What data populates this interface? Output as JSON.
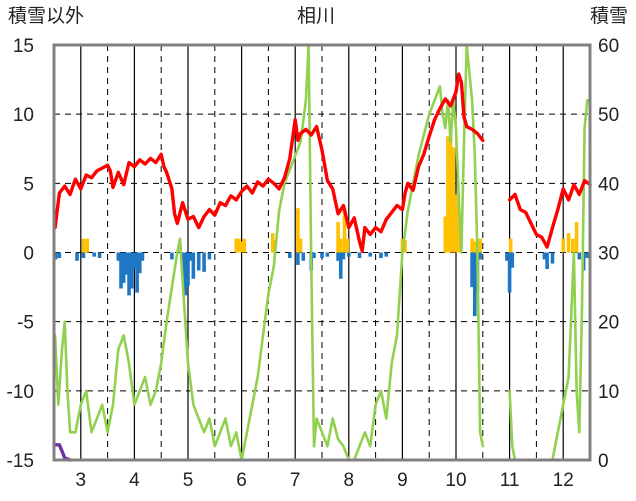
{
  "chart_data": {
    "type": "line",
    "title": "相川",
    "left_axis_label": "積雪以外",
    "right_axis_label": "積雪",
    "left_ylim": [
      -15,
      15
    ],
    "left_ticks": [
      "15",
      "10",
      "5",
      "0",
      "-5",
      "-10",
      "-15"
    ],
    "right_ylim": [
      0,
      60
    ],
    "right_ticks": [
      "60",
      "50",
      "40",
      "30",
      "20",
      "10",
      "0"
    ],
    "x_ticks": [
      "3",
      "4",
      "5",
      "6",
      "7",
      "8",
      "9",
      "10",
      "11",
      "12"
    ],
    "x_range": [
      2.5,
      12.5
    ],
    "grid": "dashed",
    "colors": {
      "temperature": "#ff0000",
      "positive_bars": "#ffc000",
      "negative_bars": "#1f77c4",
      "snow_series": "#92d050",
      "snow_depth": "#7030a0",
      "grid": "#000000",
      "frame": "#808080"
    },
    "series": [
      {
        "role": "red_line_left_axis",
        "points": [
          [
            2.52,
            1.8
          ],
          [
            2.6,
            4.3
          ],
          [
            2.7,
            4.8
          ],
          [
            2.8,
            4.2
          ],
          [
            2.9,
            5.3
          ],
          [
            3.0,
            4.6
          ],
          [
            3.1,
            5.6
          ],
          [
            3.2,
            5.4
          ],
          [
            3.3,
            5.9
          ],
          [
            3.4,
            6.1
          ],
          [
            3.5,
            6.3
          ],
          [
            3.55,
            5.9
          ],
          [
            3.6,
            4.7
          ],
          [
            3.7,
            5.8
          ],
          [
            3.8,
            4.9
          ],
          [
            3.9,
            6.5
          ],
          [
            4.0,
            6.2
          ],
          [
            4.1,
            6.7
          ],
          [
            4.2,
            6.4
          ],
          [
            4.3,
            6.8
          ],
          [
            4.4,
            6.5
          ],
          [
            4.5,
            7.1
          ],
          [
            4.55,
            6.2
          ],
          [
            4.6,
            5.8
          ],
          [
            4.7,
            4.6
          ],
          [
            4.75,
            2.8
          ],
          [
            4.8,
            2.1
          ],
          [
            4.9,
            3.6
          ],
          [
            5.0,
            2.4
          ],
          [
            5.1,
            2.6
          ],
          [
            5.2,
            1.8
          ],
          [
            5.3,
            2.6
          ],
          [
            5.4,
            3.1
          ],
          [
            5.5,
            2.7
          ],
          [
            5.6,
            3.6
          ],
          [
            5.7,
            3.4
          ],
          [
            5.8,
            4.1
          ],
          [
            5.9,
            3.8
          ],
          [
            6.0,
            4.4
          ],
          [
            6.1,
            4.8
          ],
          [
            6.2,
            4.3
          ],
          [
            6.3,
            5.1
          ],
          [
            6.4,
            4.8
          ],
          [
            6.5,
            5.3
          ],
          [
            6.6,
            5.0
          ],
          [
            6.7,
            4.6
          ],
          [
            6.8,
            5.4
          ],
          [
            6.9,
            6.8
          ],
          [
            7.0,
            9.6
          ],
          [
            7.05,
            8.1
          ],
          [
            7.1,
            8.6
          ],
          [
            7.2,
            8.9
          ],
          [
            7.3,
            8.5
          ],
          [
            7.4,
            9.1
          ],
          [
            7.5,
            7.4
          ],
          [
            7.6,
            5.2
          ],
          [
            7.7,
            4.6
          ],
          [
            7.8,
            2.8
          ],
          [
            7.9,
            3.4
          ],
          [
            8.0,
            1.8
          ],
          [
            8.1,
            2.5
          ],
          [
            8.2,
            0.8
          ],
          [
            8.25,
            0.1
          ],
          [
            8.3,
            1.8
          ],
          [
            8.4,
            1.3
          ],
          [
            8.5,
            1.8
          ],
          [
            8.6,
            1.5
          ],
          [
            8.7,
            2.4
          ],
          [
            8.8,
            2.9
          ],
          [
            8.9,
            3.4
          ],
          [
            9.0,
            3.1
          ],
          [
            9.05,
            4.3
          ],
          [
            9.1,
            5.0
          ],
          [
            9.2,
            4.5
          ],
          [
            9.3,
            6.2
          ],
          [
            9.4,
            7.1
          ],
          [
            9.5,
            8.4
          ],
          [
            9.6,
            9.6
          ],
          [
            9.7,
            10.4
          ],
          [
            9.8,
            11.1
          ],
          [
            9.9,
            10.6
          ],
          [
            10.0,
            11.6
          ],
          [
            10.05,
            12.9
          ],
          [
            10.1,
            12.3
          ],
          [
            10.15,
            9.8
          ],
          [
            10.2,
            9.1
          ],
          [
            10.3,
            8.9
          ],
          [
            10.4,
            8.6
          ],
          [
            10.5,
            8.1
          ],
          [
            11.0,
            3.8
          ],
          [
            11.1,
            4.2
          ],
          [
            11.2,
            3.1
          ],
          [
            11.3,
            2.9
          ],
          [
            11.4,
            2.1
          ],
          [
            11.5,
            1.3
          ],
          [
            11.6,
            1.1
          ],
          [
            11.7,
            0.4
          ],
          [
            11.8,
            1.8
          ],
          [
            11.9,
            3.1
          ],
          [
            12.0,
            4.6
          ],
          [
            12.1,
            3.8
          ],
          [
            12.2,
            4.9
          ],
          [
            12.3,
            4.2
          ],
          [
            12.4,
            5.2
          ],
          [
            12.5,
            4.9
          ]
        ]
      },
      {
        "role": "green_line_right_axis",
        "points": [
          [
            2.52,
            18
          ],
          [
            2.58,
            8
          ],
          [
            2.65,
            16
          ],
          [
            2.7,
            20
          ],
          [
            2.75,
            10
          ],
          [
            2.8,
            4
          ],
          [
            2.9,
            4
          ],
          [
            3.0,
            8
          ],
          [
            3.1,
            10
          ],
          [
            3.2,
            4
          ],
          [
            3.3,
            6
          ],
          [
            3.4,
            8
          ],
          [
            3.5,
            4
          ],
          [
            3.6,
            8
          ],
          [
            3.7,
            16
          ],
          [
            3.8,
            18
          ],
          [
            3.9,
            14
          ],
          [
            4.0,
            8
          ],
          [
            4.1,
            10
          ],
          [
            4.2,
            12
          ],
          [
            4.3,
            8
          ],
          [
            4.4,
            10
          ],
          [
            4.5,
            14
          ],
          [
            4.6,
            20
          ],
          [
            4.7,
            25
          ],
          [
            4.8,
            30
          ],
          [
            4.85,
            32
          ],
          [
            4.9,
            26
          ],
          [
            5.0,
            14
          ],
          [
            5.1,
            8
          ],
          [
            5.2,
            6
          ],
          [
            5.3,
            4
          ],
          [
            5.4,
            6
          ],
          [
            5.5,
            2
          ],
          [
            5.6,
            4
          ],
          [
            5.7,
            6
          ],
          [
            5.8,
            2
          ],
          [
            5.9,
            4
          ],
          [
            6.0,
            0
          ],
          [
            6.1,
            4
          ],
          [
            6.2,
            8
          ],
          [
            6.3,
            12
          ],
          [
            6.4,
            18
          ],
          [
            6.5,
            24
          ],
          [
            6.6,
            28
          ],
          [
            6.7,
            36
          ],
          [
            6.8,
            40
          ],
          [
            6.9,
            42
          ],
          [
            7.0,
            44
          ],
          [
            7.1,
            46
          ],
          [
            7.2,
            52
          ],
          [
            7.25,
            60
          ],
          [
            7.3,
            28
          ],
          [
            7.35,
            2
          ],
          [
            7.4,
            6
          ],
          [
            7.5,
            4
          ],
          [
            7.6,
            2
          ],
          [
            7.7,
            6
          ],
          [
            7.8,
            3
          ],
          [
            7.9,
            2
          ],
          [
            8.0,
            0
          ],
          [
            8.1,
            0
          ],
          [
            8.2,
            2
          ],
          [
            8.3,
            4
          ],
          [
            8.4,
            2
          ],
          [
            8.5,
            8
          ],
          [
            8.6,
            10
          ],
          [
            8.7,
            6
          ],
          [
            8.8,
            14
          ],
          [
            8.9,
            18
          ],
          [
            9.0,
            30
          ],
          [
            9.1,
            36
          ],
          [
            9.2,
            40
          ],
          [
            9.3,
            44
          ],
          [
            9.4,
            47
          ],
          [
            9.5,
            50
          ],
          [
            9.6,
            52
          ],
          [
            9.7,
            54
          ],
          [
            9.75,
            50
          ],
          [
            9.8,
            48
          ],
          [
            9.85,
            52
          ],
          [
            9.9,
            46
          ],
          [
            9.95,
            52
          ],
          [
            10.0,
            48
          ],
          [
            10.05,
            38
          ],
          [
            10.1,
            30
          ],
          [
            10.15,
            46
          ],
          [
            10.2,
            60
          ],
          [
            10.25,
            56
          ],
          [
            10.3,
            52
          ],
          [
            10.35,
            44
          ],
          [
            10.4,
            30
          ],
          [
            10.45,
            4
          ],
          [
            10.5,
            2
          ],
          [
            11.0,
            10
          ],
          [
            11.05,
            2
          ],
          [
            11.1,
            0
          ],
          [
            11.8,
            0
          ],
          [
            11.9,
            4
          ],
          [
            12.0,
            8
          ],
          [
            12.1,
            12
          ],
          [
            12.2,
            30
          ],
          [
            12.25,
            10
          ],
          [
            12.3,
            4
          ],
          [
            12.35,
            22
          ],
          [
            12.4,
            48
          ],
          [
            12.45,
            52
          ],
          [
            12.5,
            52
          ]
        ]
      },
      {
        "role": "purple_line_right_axis",
        "points": [
          [
            2.5,
            2.2
          ],
          [
            2.6,
            2.2
          ],
          [
            2.7,
            0.3
          ],
          [
            2.8,
            0
          ],
          [
            12.5,
            0
          ]
        ]
      },
      {
        "role": "positive_bars_left_axis",
        "bars": [
          [
            3.05,
            1.0
          ],
          [
            3.12,
            1.0
          ],
          [
            5.9,
            1.0
          ],
          [
            5.95,
            1.0
          ],
          [
            6.0,
            0.8
          ],
          [
            6.05,
            1.0
          ],
          [
            6.58,
            1.4
          ],
          [
            6.62,
            0.9
          ],
          [
            7.05,
            3.2
          ],
          [
            7.1,
            1.0
          ],
          [
            7.8,
            2.2
          ],
          [
            7.85,
            1.0
          ],
          [
            7.92,
            3.2
          ],
          [
            7.97,
            1.0
          ],
          [
            9.0,
            1.0
          ],
          [
            9.05,
            0.9
          ],
          [
            9.8,
            2.6
          ],
          [
            9.85,
            8.4
          ],
          [
            9.9,
            9.2
          ],
          [
            9.95,
            7.6
          ],
          [
            10.02,
            4.2
          ],
          [
            10.08,
            2.8
          ],
          [
            10.3,
            1.0
          ],
          [
            10.35,
            0.8
          ],
          [
            10.45,
            1.0
          ],
          [
            11.02,
            1.0
          ],
          [
            12.0,
            1.0
          ],
          [
            12.1,
            1.4
          ],
          [
            12.18,
            1.0
          ],
          [
            12.25,
            2.2
          ]
        ]
      },
      {
        "role": "negative_bars_left_axis",
        "bars": [
          [
            2.53,
            -0.5
          ],
          [
            2.6,
            -0.4
          ],
          [
            2.93,
            -0.6
          ],
          [
            3.05,
            -0.4
          ],
          [
            3.25,
            -0.3
          ],
          [
            3.35,
            -0.4
          ],
          [
            3.7,
            -0.6
          ],
          [
            3.75,
            -2.6
          ],
          [
            3.8,
            -2.2
          ],
          [
            3.85,
            -1.6
          ],
          [
            3.9,
            -3.1
          ],
          [
            3.95,
            -2.6
          ],
          [
            4.0,
            -1.2
          ],
          [
            4.05,
            -2.9
          ],
          [
            4.1,
            -1.5
          ],
          [
            4.15,
            -0.6
          ],
          [
            4.7,
            -0.5
          ],
          [
            4.9,
            -1.5
          ],
          [
            4.95,
            -3.1
          ],
          [
            5.0,
            -2.4
          ],
          [
            5.05,
            -0.6
          ],
          [
            5.1,
            -1.9
          ],
          [
            5.2,
            -1.3
          ],
          [
            5.3,
            -1.4
          ],
          [
            5.4,
            -0.5
          ],
          [
            6.9,
            -0.4
          ],
          [
            7.05,
            -0.9
          ],
          [
            7.15,
            -0.6
          ],
          [
            7.3,
            -1.3
          ],
          [
            7.35,
            -0.4
          ],
          [
            7.5,
            -0.4
          ],
          [
            7.6,
            -0.3
          ],
          [
            7.8,
            -0.6
          ],
          [
            7.85,
            -1.9
          ],
          [
            7.9,
            -0.5
          ],
          [
            8.0,
            -0.3
          ],
          [
            8.2,
            -0.4
          ],
          [
            8.4,
            -0.3
          ],
          [
            8.6,
            -0.4
          ],
          [
            8.7,
            -0.3
          ],
          [
            10.3,
            -2.5
          ],
          [
            10.35,
            -4.6
          ],
          [
            10.4,
            -2.8
          ],
          [
            10.45,
            -0.5
          ],
          [
            10.95,
            -0.6
          ],
          [
            11.0,
            -2.9
          ],
          [
            11.05,
            -1.1
          ],
          [
            11.65,
            -0.5
          ],
          [
            11.7,
            -1.2
          ],
          [
            11.8,
            -0.8
          ],
          [
            12.3,
            -0.5
          ],
          [
            12.38,
            -1.3
          ],
          [
            12.45,
            -0.4
          ]
        ]
      }
    ]
  }
}
